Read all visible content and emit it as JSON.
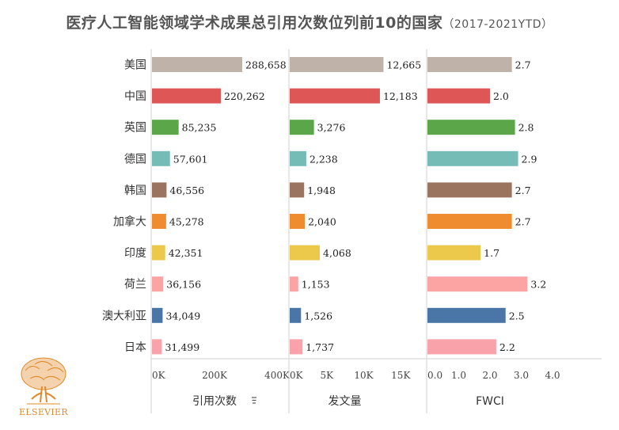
{
  "title": "医疗人工智能领域学术成果总引用次数位列前10的国家",
  "subtitle": "（2017-2021YTD）",
  "logo_text": "ELSEVIER",
  "chart_data": [
    {
      "type": "bar",
      "orientation": "horizontal",
      "xlabel": "引用次数",
      "xlim": [
        0,
        400000
      ],
      "ticks": [
        0,
        200000,
        400000
      ],
      "tick_labels": [
        "0K",
        "200K",
        "400K"
      ],
      "categories": [
        "美国",
        "中国",
        "英国",
        "德国",
        "韩国",
        "加拿大",
        "印度",
        "荷兰",
        "澳大利亚",
        "日本"
      ],
      "values": [
        288658,
        220262,
        85235,
        57601,
        46556,
        45278,
        42351,
        36156,
        34049,
        31499
      ],
      "labels": [
        "288,658",
        "220,262",
        "85,235",
        "57,601",
        "46,556",
        "45,278",
        "42,351",
        "36,156",
        "34,049",
        "31,499"
      ]
    },
    {
      "type": "bar",
      "orientation": "horizontal",
      "xlabel": "发文量",
      "xlim": [
        0,
        17000
      ],
      "ticks": [
        0,
        5000,
        10000,
        15000
      ],
      "tick_labels": [
        "0K",
        "5K",
        "10K",
        "15K"
      ],
      "categories": [
        "美国",
        "中国",
        "英国",
        "德国",
        "韩国",
        "加拿大",
        "印度",
        "荷兰",
        "澳大利亚",
        "日本"
      ],
      "values": [
        12665,
        12183,
        3276,
        2238,
        1948,
        2040,
        4068,
        1153,
        1526,
        1737
      ],
      "labels": [
        "12,665",
        "12,183",
        "3,276",
        "2,238",
        "1,948",
        "2,040",
        "4,068",
        "1,153",
        "1,526",
        "1,737"
      ]
    },
    {
      "type": "bar",
      "orientation": "horizontal",
      "xlabel": "FWCI",
      "xlim": [
        0,
        4.0
      ],
      "ticks": [
        0,
        1,
        2,
        3,
        4
      ],
      "tick_labels": [
        "0.0",
        "1.0",
        "2.0",
        "3.0",
        "4.0"
      ],
      "categories": [
        "美国",
        "中国",
        "英国",
        "德国",
        "韩国",
        "加拿大",
        "印度",
        "荷兰",
        "澳大利亚",
        "日本"
      ],
      "values": [
        2.7,
        2.0,
        2.8,
        2.9,
        2.7,
        2.7,
        1.7,
        3.2,
        2.5,
        2.2
      ],
      "labels": [
        "2.7",
        "2.0",
        "2.8",
        "2.9",
        "2.7",
        "2.7",
        "1.7",
        "3.2",
        "2.5",
        "2.2"
      ]
    }
  ],
  "colors": [
    "#bfb2a9",
    "#de5656",
    "#5aa649",
    "#76bcb6",
    "#9b7460",
    "#ee8c2f",
    "#ecc94a",
    "#fca3a4",
    "#4a76a7",
    "#f9a2aa"
  ]
}
